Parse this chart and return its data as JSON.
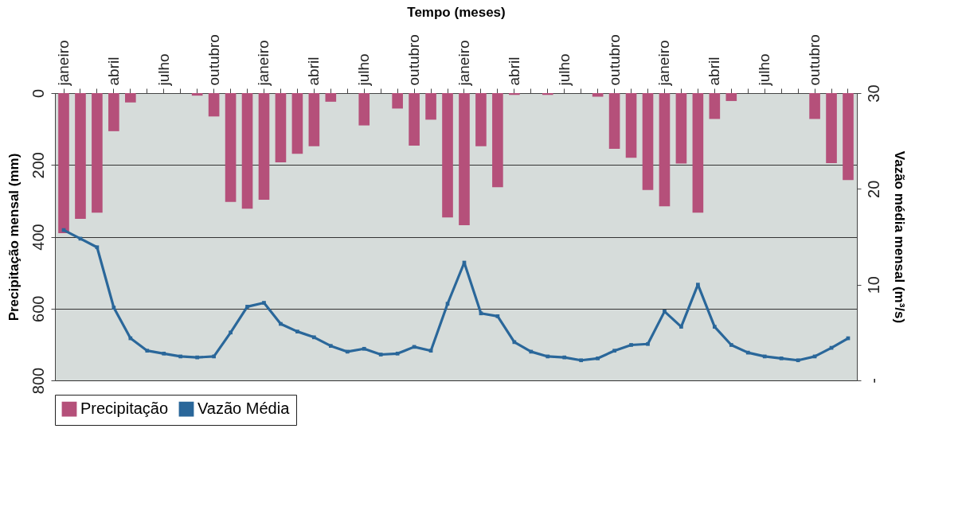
{
  "chart_data": {
    "type": "bar",
    "xlabel": "Tempo (meses)",
    "ylabel": "Precipitação mensal (mm)",
    "y2label": "Vazão média mensal (m³/s)",
    "categories": [
      "janeiro",
      null,
      null,
      "abril",
      null,
      null,
      "julho",
      null,
      null,
      "outubro",
      null,
      null,
      "janeiro",
      null,
      null,
      "abril",
      null,
      null,
      "julho",
      null,
      null,
      "outubro",
      null,
      null,
      "janeiro",
      null,
      null,
      "abril",
      null,
      null,
      "julho",
      null,
      null,
      "outubro",
      null,
      null,
      "janeiro",
      null,
      null,
      "abril",
      null,
      null,
      "julho",
      null,
      null,
      "outubro",
      null,
      null
    ],
    "series": [
      {
        "name": "Precipitação",
        "color": "#b5507a",
        "values": [
          390,
          350,
          333,
          106,
          26,
          0,
          0,
          0,
          7,
          65,
          303,
          322,
          297,
          193,
          169,
          148,
          24,
          0,
          90,
          0,
          43,
          146,
          74,
          346,
          368,
          148,
          262,
          5,
          0,
          5,
          0,
          0,
          10,
          155,
          180,
          270,
          315,
          196,
          333,
          72,
          22,
          0,
          0,
          0,
          0,
          72,
          195,
          242
        ]
      },
      {
        "name": "Vazão Média",
        "type": "line",
        "axis": "y2",
        "color": "#2a679a",
        "values": [
          15.7,
          14.8,
          13.9,
          7.6,
          4.4,
          3.1,
          2.8,
          2.5,
          2.4,
          2.5,
          5.0,
          7.7,
          8.1,
          5.9,
          5.1,
          4.5,
          3.6,
          3.0,
          3.3,
          2.7,
          2.8,
          3.5,
          3.1,
          8.0,
          12.3,
          7.0,
          6.7,
          4.0,
          3.0,
          2.5,
          2.4,
          2.1,
          2.3,
          3.1,
          3.7,
          3.8,
          7.2,
          5.6,
          10.0,
          5.6,
          3.7,
          2.9,
          2.5,
          2.3,
          2.1,
          2.5,
          3.4,
          4.4
        ]
      }
    ],
    "ylim": [
      800,
      0
    ],
    "yticks": [
      0,
      200,
      400,
      600,
      800
    ],
    "y2lim": [
      0,
      30
    ],
    "y2ticks": [
      {
        "value": 0,
        "label": "-"
      },
      10,
      20,
      30
    ],
    "grid": "y",
    "legend": "bottom",
    "marker": "square"
  }
}
